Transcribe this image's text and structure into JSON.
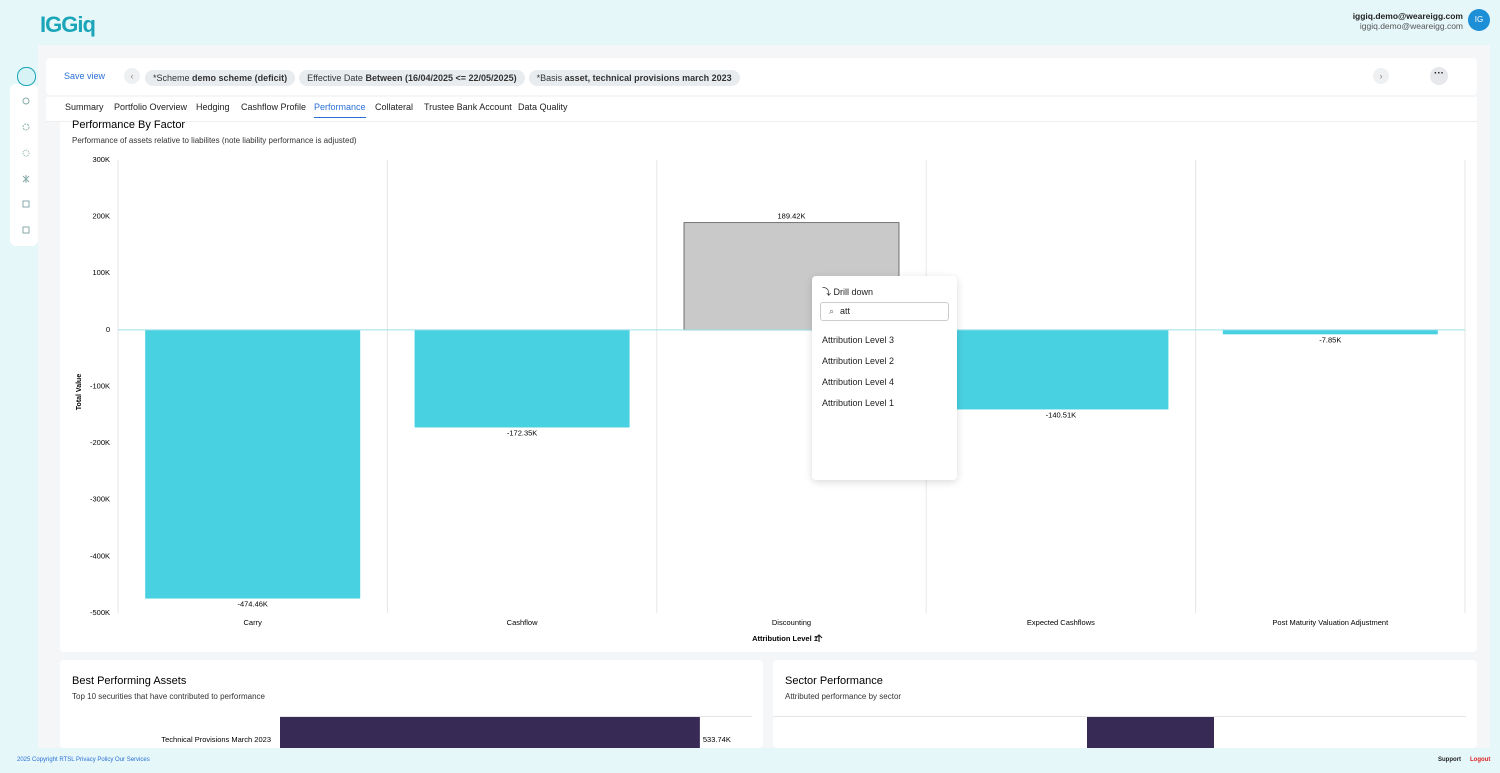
{
  "header": {
    "logo": "IGGiq",
    "user_name": "iggiq.demo@weareigg.com",
    "user_email": "iggiq.demo@weareigg.com",
    "avatar": "IG"
  },
  "toolbar": {
    "save_view": "Save view",
    "filters": [
      {
        "label": "*Scheme",
        "value": "demo scheme (deficit)"
      },
      {
        "label": "Effective Date",
        "value": "Between (16/04/2025 <= 22/05/2025)"
      },
      {
        "label": "*Basis",
        "value": "asset, technical provisions march 2023"
      }
    ]
  },
  "tabs": [
    "Summary",
    "Portfolio Overview",
    "Hedging",
    "Cashflow Profile",
    "Performance",
    "Collateral",
    "Trustee Bank Account",
    "Data Quality"
  ],
  "active_tab": "Performance",
  "performance_chart": {
    "type": "bar",
    "title": "Performance By Factor",
    "subtitle": "Performance of assets relative to liabilites (note liability performance is adjusted)",
    "y_label": "Total Value",
    "x_label": "Attribution Level 1",
    "categories": [
      "Carry",
      "Cashflow",
      "Discounting",
      "Expected Cashflows",
      "Post Maturity Valuation Adjustment"
    ],
    "values": [
      -474460,
      -172350,
      189420,
      -140510,
      -7850
    ],
    "value_labels": [
      "-474.46K",
      "-172.35K",
      "189.42K",
      "-140.51K",
      "-7.85K"
    ],
    "colors": [
      "#48d1e0",
      "#48d1e0",
      "#c9c9c9",
      "#48d1e0",
      "#48d1e0"
    ],
    "ylim": [
      -500000,
      300000
    ],
    "yticks": [
      {
        "value": 300000,
        "label": "300K"
      },
      {
        "value": 200000,
        "label": "200K"
      },
      {
        "value": 100000,
        "label": "100K"
      },
      0,
      {
        "value": -100000,
        "label": "-100K"
      },
      {
        "value": -200000,
        "label": "-200K"
      },
      {
        "value": -300000,
        "label": "-300K"
      },
      {
        "value": -400000,
        "label": "-400K"
      },
      {
        "value": -500000,
        "label": "-500K"
      }
    ]
  },
  "drill_menu": {
    "title": "Drill down",
    "search": "att",
    "options": [
      "Attribution Level 3",
      "Attribution Level 2",
      "Attribution Level 4",
      "Attribution Level 1"
    ]
  },
  "best_assets": {
    "type": "hbar",
    "title": "Best Performing Assets",
    "subtitle": "Top 10 securities that have contributed to performance",
    "categories": [
      "Technical Provisions March 2023"
    ],
    "values": [
      533740
    ],
    "value_labels": [
      "533.74K"
    ],
    "color": "#372a55",
    "xlim": [
      0,
      600000
    ]
  },
  "sector": {
    "title": "Sector Performance",
    "subtitle": "Attributed performance by sector"
  },
  "footer": {
    "copyright": "2025 Copyright RTSL Privacy Policy Our Services",
    "support": "Support",
    "logout": "Logout"
  }
}
